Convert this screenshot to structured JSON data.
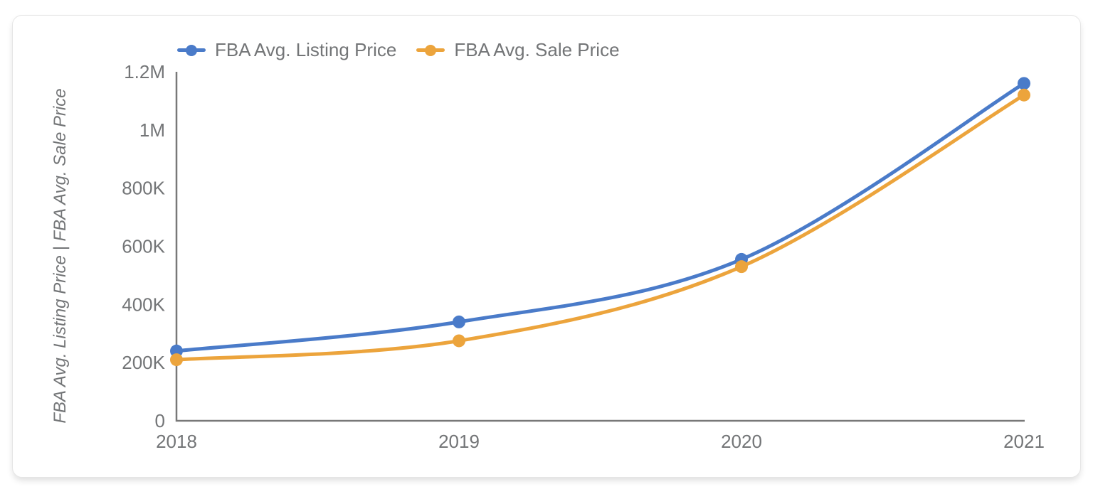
{
  "chart_data": {
    "type": "line",
    "categories": [
      "2018",
      "2019",
      "2020",
      "2021"
    ],
    "series": [
      {
        "name": "FBA Avg. Listing Price",
        "color": "#4a7bc9",
        "values": [
          240000,
          340000,
          555000,
          1160000
        ]
      },
      {
        "name": "FBA Avg. Sale Price",
        "color": "#eca43c",
        "values": [
          210000,
          275000,
          530000,
          1120000
        ]
      }
    ],
    "title": "",
    "xlabel": "",
    "ylabel": "FBA Avg. Listing Price | FBA Avg. Sale Price",
    "ylim": [
      0,
      1200000
    ],
    "yticks": [
      {
        "value": 0,
        "label": "0"
      },
      {
        "value": 200000,
        "label": "200K"
      },
      {
        "value": 400000,
        "label": "400K"
      },
      {
        "value": 600000,
        "label": "600K"
      },
      {
        "value": 800000,
        "label": "800K"
      },
      {
        "value": 1000000,
        "label": "1M"
      },
      {
        "value": 1200000,
        "label": "1.2M"
      }
    ],
    "grid": false,
    "legend_position": "top-left",
    "marker": "circle",
    "axis_color": "#787878",
    "text_color": "#737577",
    "plot_background": "#ffffff"
  }
}
